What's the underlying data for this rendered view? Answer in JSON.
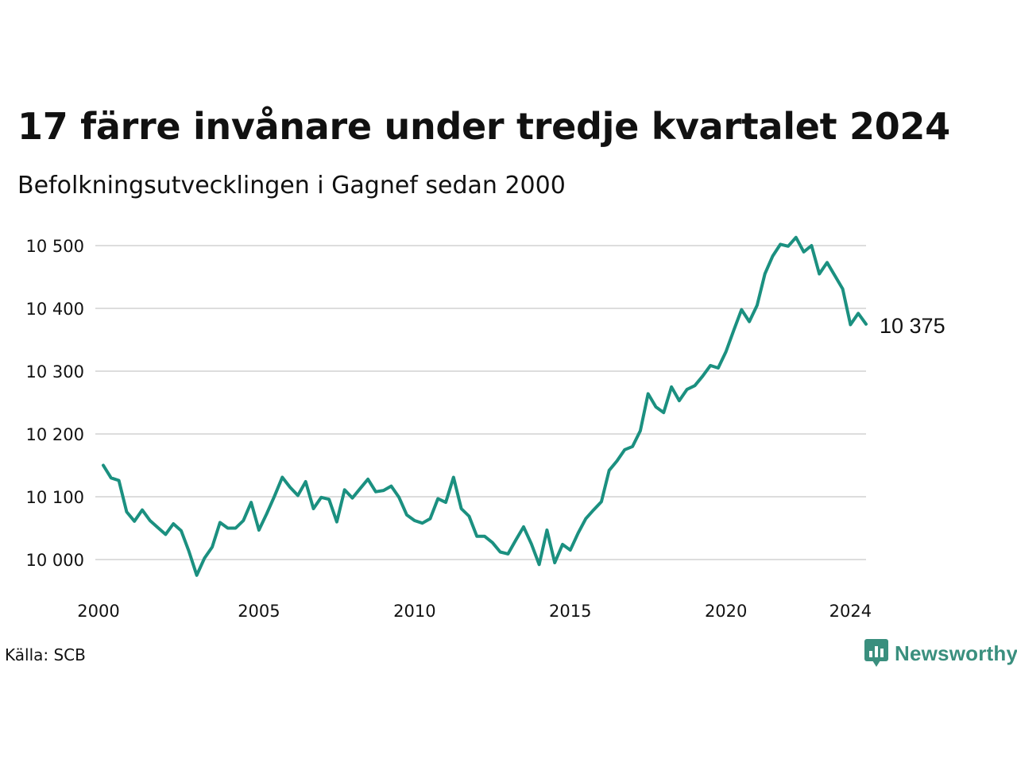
{
  "title": "17 färre invånare under tredje kvartalet 2024",
  "subtitle": "Befolkningsutvecklingen i Gagnef sedan 2000",
  "source": "Källa: SCB",
  "brand": {
    "name": "Newsworthy",
    "color": "#3a8f7e",
    "icon": "bar-chart-speech-bubble-icon"
  },
  "colors": {
    "line": "#1b9080",
    "grid": "#dddddd",
    "text": "#111111"
  },
  "chart_data": {
    "type": "line",
    "title": "17 färre invånare under tredje kvartalet 2024",
    "subtitle": "Befolkningsutvecklingen i Gagnef sedan 2000",
    "xlabel": "",
    "ylabel": "",
    "x_ticks": [
      2000,
      2005,
      2010,
      2015,
      2020,
      2024
    ],
    "x_tick_labels": [
      "2000",
      "2005",
      "2010",
      "2015",
      "2020",
      "2024"
    ],
    "y_ticks": [
      10000,
      10100,
      10200,
      10300,
      10400,
      10500
    ],
    "y_tick_labels": [
      "10 000",
      "10 100",
      "10 200",
      "10 300",
      "10 400",
      "10 500"
    ],
    "xlim": [
      2000,
      2024.5
    ],
    "ylim": [
      9990,
      10520
    ],
    "grid": "horizontal",
    "legend": "none",
    "end_label": "10 375",
    "series": [
      {
        "x": [
          2000,
          2000.25,
          2000.5,
          2000.75,
          2001,
          2001.25,
          2001.5,
          2001.75,
          2002,
          2002.25,
          2002.5,
          2002.75,
          2003,
          2003.25,
          2003.5,
          2003.75,
          2004,
          2004.25,
          2004.5,
          2004.75,
          2005,
          2005.25,
          2005.5,
          2005.75,
          2006,
          2006.25,
          2006.5,
          2006.75,
          2007,
          2007.25,
          2007.5,
          2007.75,
          2008,
          2008.25,
          2008.5,
          2008.75,
          2009,
          2009.25,
          2009.5,
          2009.75,
          2010,
          2010.25,
          2010.5,
          2010.75,
          2011,
          2011.25,
          2011.5,
          2011.75,
          2012,
          2012.25,
          2012.5,
          2012.75,
          2013,
          2013.25,
          2013.5,
          2013.75,
          2014,
          2014.25,
          2014.5,
          2014.75,
          2015,
          2015.25,
          2015.5,
          2015.75,
          2016,
          2016.25,
          2016.5,
          2016.75,
          2017,
          2017.25,
          2017.5,
          2017.75,
          2018,
          2018.25,
          2018.5,
          2018.75,
          2019,
          2019.25,
          2019.5,
          2019.75,
          2020,
          2020.25,
          2020.5,
          2020.75,
          2021,
          2021.25,
          2021.5,
          2021.75,
          2022,
          2022.25,
          2022.5,
          2022.75,
          2023,
          2023.25,
          2023.5,
          2023.75,
          2024,
          2024.25,
          2024.5
        ],
        "values": [
          10150,
          10130,
          10126,
          10076,
          10061,
          10079,
          10062,
          10051,
          10040,
          10057,
          10046,
          10013,
          9975,
          10002,
          10020,
          10059,
          10050,
          10050,
          10062,
          10091,
          10047,
          10073,
          10101,
          10131,
          10115,
          10102,
          10124,
          10081,
          10099,
          10096,
          10060,
          10111,
          10098,
          10113,
          10128,
          10108,
          10110,
          10117,
          10099,
          10071,
          10062,
          10058,
          10065,
          10097,
          10091,
          10131,
          10081,
          10069,
          10037,
          10037,
          10027,
          10012,
          10009,
          10031,
          10052,
          10025,
          9992,
          10047,
          9995,
          10024,
          10015,
          10042,
          10065,
          10079,
          10092,
          10142,
          10157,
          10175,
          10180,
          10205,
          10264,
          10243,
          10234,
          10275,
          10253,
          10271,
          10277,
          10292,
          10309,
          10305,
          10331,
          10365,
          10398,
          10379,
          10405,
          10455,
          10483,
          10502,
          10499,
          10513,
          10490,
          10500,
          10455,
          10473,
          10452,
          10431,
          10374,
          10392,
          10375
        ]
      }
    ]
  }
}
